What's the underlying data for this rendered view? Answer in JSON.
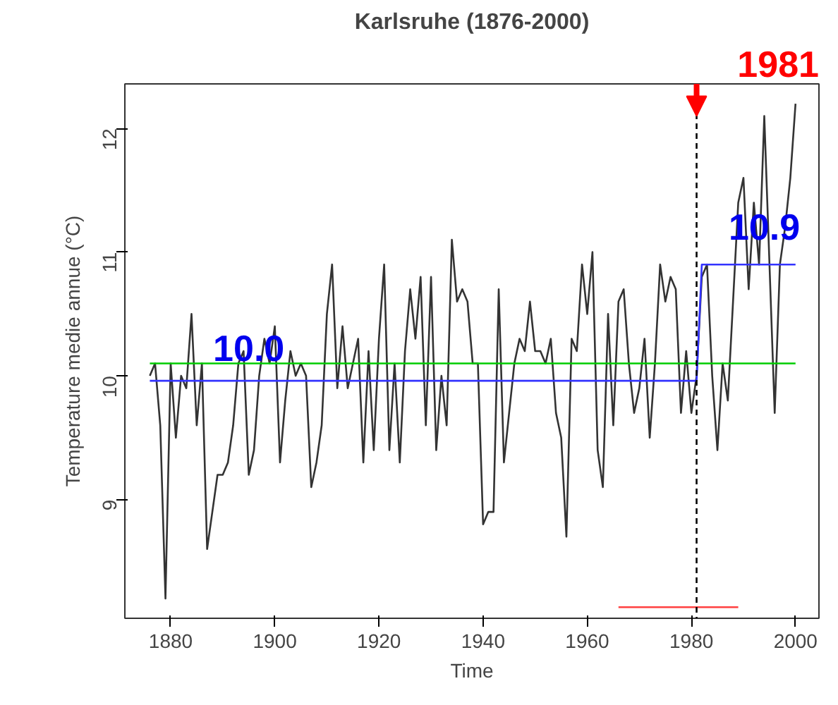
{
  "chart_data": {
    "type": "line",
    "title": "Karlsruhe (1876-2000)",
    "xlabel": "Time",
    "ylabel": "Temperature medie annue (°C)",
    "xlim": [
      1871.2,
      2004.5
    ],
    "ylim": [
      8.04,
      12.36
    ],
    "xticks": [
      1880,
      1900,
      1920,
      1940,
      1960,
      1980,
      2000
    ],
    "yticks": [
      9,
      10,
      11,
      12
    ],
    "grid": false,
    "marker": "none",
    "line_style": "solid",
    "series": [
      {
        "color": "#333333",
        "x": [
          1876,
          1877,
          1878,
          1879,
          1880,
          1881,
          1882,
          1883,
          1884,
          1885,
          1886,
          1887,
          1888,
          1889,
          1890,
          1891,
          1892,
          1893,
          1894,
          1895,
          1896,
          1897,
          1898,
          1899,
          1900,
          1901,
          1902,
          1903,
          1904,
          1905,
          1906,
          1907,
          1908,
          1909,
          1910,
          1911,
          1912,
          1913,
          1914,
          1915,
          1916,
          1917,
          1918,
          1919,
          1920,
          1921,
          1922,
          1923,
          1924,
          1925,
          1926,
          1927,
          1928,
          1929,
          1930,
          1931,
          1932,
          1933,
          1934,
          1935,
          1936,
          1937,
          1938,
          1939,
          1940,
          1941,
          1942,
          1943,
          1944,
          1945,
          1946,
          1947,
          1948,
          1949,
          1950,
          1951,
          1952,
          1953,
          1954,
          1955,
          1956,
          1957,
          1958,
          1959,
          1960,
          1961,
          1962,
          1963,
          1964,
          1965,
          1966,
          1967,
          1968,
          1969,
          1970,
          1971,
          1972,
          1973,
          1974,
          1975,
          1976,
          1977,
          1978,
          1979,
          1980,
          1981,
          1982,
          1983,
          1984,
          1985,
          1986,
          1987,
          1988,
          1989,
          1990,
          1991,
          1992,
          1993,
          1994,
          1995,
          1996,
          1997,
          1998,
          1999,
          2000
        ],
        "values": [
          10.0,
          10.1,
          9.6,
          8.2,
          10.1,
          9.5,
          10.0,
          9.9,
          10.5,
          9.6,
          10.1,
          8.6,
          8.9,
          9.2,
          9.2,
          9.3,
          9.6,
          10.1,
          10.2,
          9.2,
          9.4,
          10.0,
          10.3,
          10.1,
          10.4,
          9.3,
          9.8,
          10.2,
          10.0,
          10.1,
          10.0,
          9.1,
          9.3,
          9.6,
          10.5,
          10.9,
          9.9,
          10.4,
          9.9,
          10.1,
          10.3,
          9.3,
          10.2,
          9.4,
          10.3,
          10.9,
          9.4,
          10.1,
          9.3,
          10.2,
          10.7,
          10.3,
          10.8,
          9.6,
          10.8,
          9.4,
          10.0,
          9.6,
          11.1,
          10.6,
          10.7,
          10.6,
          10.1,
          10.1,
          8.8,
          8.9,
          8.9,
          10.7,
          9.3,
          9.7,
          10.1,
          10.3,
          10.2,
          10.6,
          10.2,
          10.2,
          10.1,
          10.3,
          9.7,
          9.5,
          8.7,
          10.3,
          10.2,
          10.9,
          10.5,
          11.0,
          9.4,
          9.1,
          10.5,
          9.6,
          10.6,
          10.7,
          10.1,
          9.7,
          9.9,
          10.3,
          9.5,
          10.1,
          10.9,
          10.6,
          10.8,
          10.7,
          9.7,
          10.2,
          9.7,
          10.0,
          10.8,
          10.9,
          10.0,
          9.4,
          10.1,
          9.8,
          10.6,
          11.4,
          11.6,
          10.7,
          11.4,
          10.9,
          12.1,
          10.9,
          9.7,
          10.9,
          11.2,
          11.6,
          12.2
        ]
      },
      {
        "color": "#00cc00",
        "x": [
          1876,
          2000
        ],
        "values": [
          10.1,
          10.1
        ]
      },
      {
        "color": "#3333ff",
        "x": [
          1876,
          1981,
          1982,
          2000
        ],
        "values": [
          9.96,
          9.96,
          10.9,
          10.9
        ]
      },
      {
        "type": "line",
        "color": "#ff4040",
        "x": [
          1966,
          1989
        ],
        "values": [
          8.13,
          8.13
        ]
      }
    ],
    "ref_lines": [
      {
        "axis": "x",
        "value": 1981,
        "label": "1981",
        "color": "#000000",
        "line_style": "dashed"
      }
    ],
    "annotations": [
      {
        "text": "10.0",
        "x": 1895,
        "y": 10.12
      },
      {
        "text": "10.9",
        "x": 1994,
        "y": 11.1
      }
    ]
  }
}
